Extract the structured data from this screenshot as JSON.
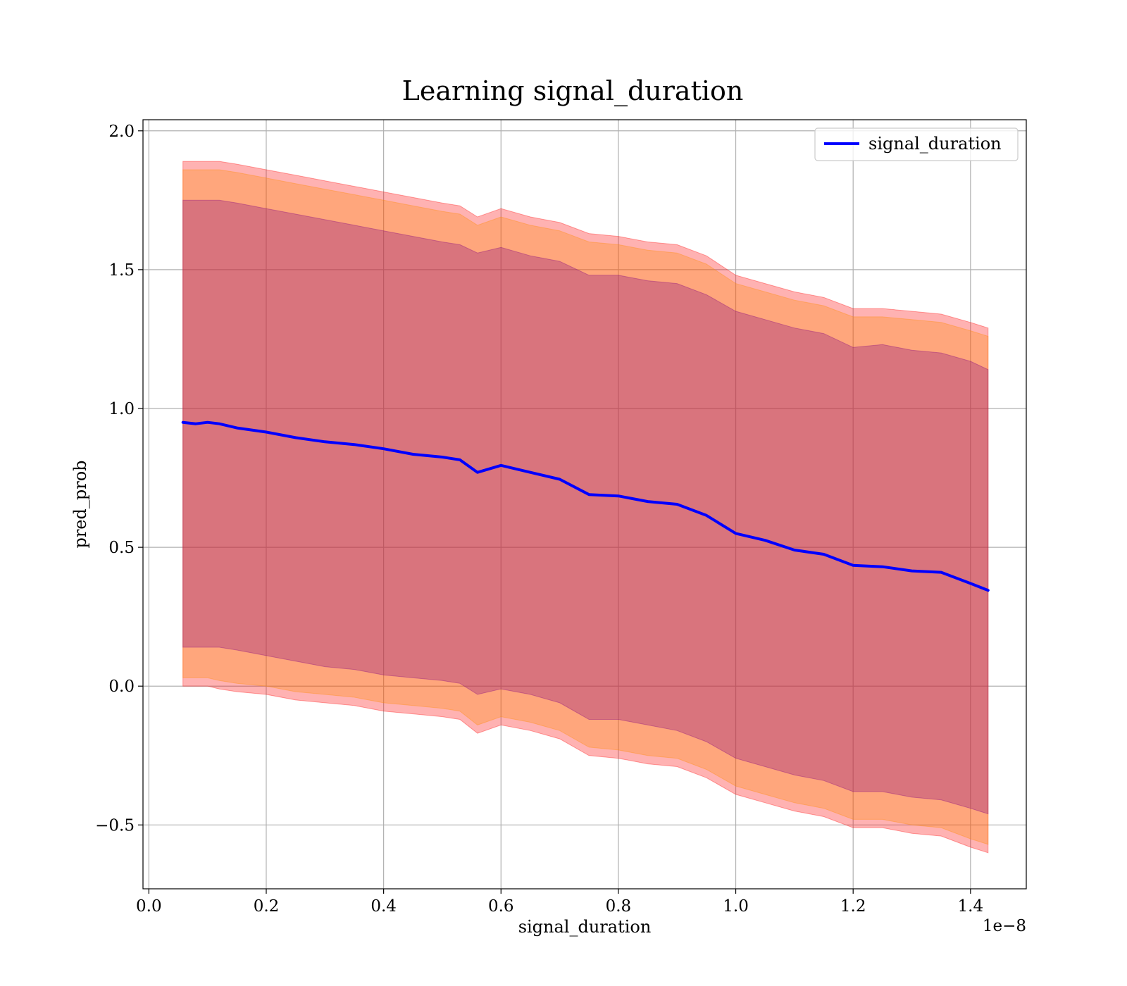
{
  "chart_data": {
    "type": "line",
    "title": "Learning signal_duration",
    "xlabel": "signal_duration",
    "ylabel": "pred_prob",
    "x_offset_label": "1e−8",
    "xlim": [
      -0.01,
      1.495
    ],
    "ylim": [
      -0.73,
      2.04
    ],
    "grid": true,
    "legend_position": "upper right",
    "x_ticks": [
      0.0,
      0.2,
      0.4,
      0.6,
      0.8,
      1.0,
      1.2,
      1.4
    ],
    "x_tick_labels": [
      "0.0",
      "0.2",
      "0.4",
      "0.6",
      "0.8",
      "1.0",
      "1.2",
      "1.4"
    ],
    "y_ticks": [
      -0.5,
      0.0,
      0.5,
      1.0,
      1.5,
      2.0
    ],
    "y_tick_labels": [
      "−0.5",
      "0.0",
      "0.5",
      "1.0",
      "1.5",
      "2.0"
    ],
    "series": [
      {
        "name": "signal_duration",
        "color": "#0000ff",
        "x": [
          0.058,
          0.08,
          0.1,
          0.12,
          0.15,
          0.2,
          0.25,
          0.3,
          0.35,
          0.4,
          0.45,
          0.5,
          0.53,
          0.56,
          0.6,
          0.65,
          0.7,
          0.75,
          0.8,
          0.85,
          0.9,
          0.95,
          1.0,
          1.05,
          1.1,
          1.15,
          1.2,
          1.25,
          1.3,
          1.35,
          1.4,
          1.43
        ],
        "y": [
          0.95,
          0.945,
          0.95,
          0.945,
          0.93,
          0.915,
          0.895,
          0.88,
          0.87,
          0.855,
          0.835,
          0.825,
          0.815,
          0.77,
          0.795,
          0.77,
          0.745,
          0.69,
          0.685,
          0.665,
          0.655,
          0.615,
          0.55,
          0.525,
          0.49,
          0.475,
          0.435,
          0.43,
          0.415,
          0.41,
          0.37,
          0.345
        ]
      }
    ],
    "bands": [
      {
        "color": "#ff0000",
        "opacity": 0.3,
        "upper": [
          1.89,
          1.89,
          1.89,
          1.89,
          1.88,
          1.86,
          1.84,
          1.82,
          1.8,
          1.78,
          1.76,
          1.74,
          1.73,
          1.69,
          1.72,
          1.69,
          1.67,
          1.63,
          1.62,
          1.6,
          1.59,
          1.55,
          1.48,
          1.45,
          1.42,
          1.4,
          1.36,
          1.36,
          1.35,
          1.34,
          1.31,
          1.29
        ],
        "lower": [
          0.0,
          -0.0,
          0.0,
          -0.01,
          -0.02,
          -0.03,
          -0.05,
          -0.06,
          -0.07,
          -0.09,
          -0.1,
          -0.11,
          -0.12,
          -0.17,
          -0.14,
          -0.16,
          -0.19,
          -0.25,
          -0.26,
          -0.28,
          -0.29,
          -0.33,
          -0.39,
          -0.42,
          -0.45,
          -0.47,
          -0.51,
          -0.51,
          -0.53,
          -0.54,
          -0.58,
          -0.6
        ]
      },
      {
        "color": "#ff8c00",
        "opacity": 0.3,
        "upper": [
          1.86,
          1.86,
          1.86,
          1.86,
          1.85,
          1.83,
          1.81,
          1.79,
          1.77,
          1.75,
          1.73,
          1.71,
          1.7,
          1.66,
          1.69,
          1.66,
          1.64,
          1.6,
          1.59,
          1.57,
          1.56,
          1.52,
          1.45,
          1.42,
          1.39,
          1.37,
          1.33,
          1.33,
          1.32,
          1.31,
          1.28,
          1.26
        ],
        "lower": [
          0.03,
          0.03,
          0.03,
          0.02,
          0.01,
          -0.0,
          -0.02,
          -0.03,
          -0.04,
          -0.06,
          -0.07,
          -0.08,
          -0.09,
          -0.14,
          -0.11,
          -0.13,
          -0.16,
          -0.22,
          -0.23,
          -0.25,
          -0.26,
          -0.3,
          -0.36,
          -0.39,
          -0.42,
          -0.44,
          -0.48,
          -0.48,
          -0.5,
          -0.51,
          -0.55,
          -0.57
        ]
      },
      {
        "color": "#800080",
        "opacity": 0.3,
        "upper": [
          1.75,
          1.75,
          1.75,
          1.75,
          1.74,
          1.72,
          1.7,
          1.68,
          1.66,
          1.64,
          1.62,
          1.6,
          1.59,
          1.56,
          1.58,
          1.55,
          1.53,
          1.48,
          1.48,
          1.46,
          1.45,
          1.41,
          1.35,
          1.32,
          1.29,
          1.27,
          1.22,
          1.23,
          1.21,
          1.2,
          1.17,
          1.14
        ],
        "lower": [
          0.14,
          0.14,
          0.14,
          0.14,
          0.13,
          0.11,
          0.09,
          0.07,
          0.06,
          0.04,
          0.03,
          0.02,
          0.01,
          -0.03,
          -0.01,
          -0.03,
          -0.06,
          -0.12,
          -0.12,
          -0.14,
          -0.16,
          -0.2,
          -0.26,
          -0.29,
          -0.32,
          -0.34,
          -0.38,
          -0.38,
          -0.4,
          -0.41,
          -0.44,
          -0.46
        ]
      }
    ]
  }
}
